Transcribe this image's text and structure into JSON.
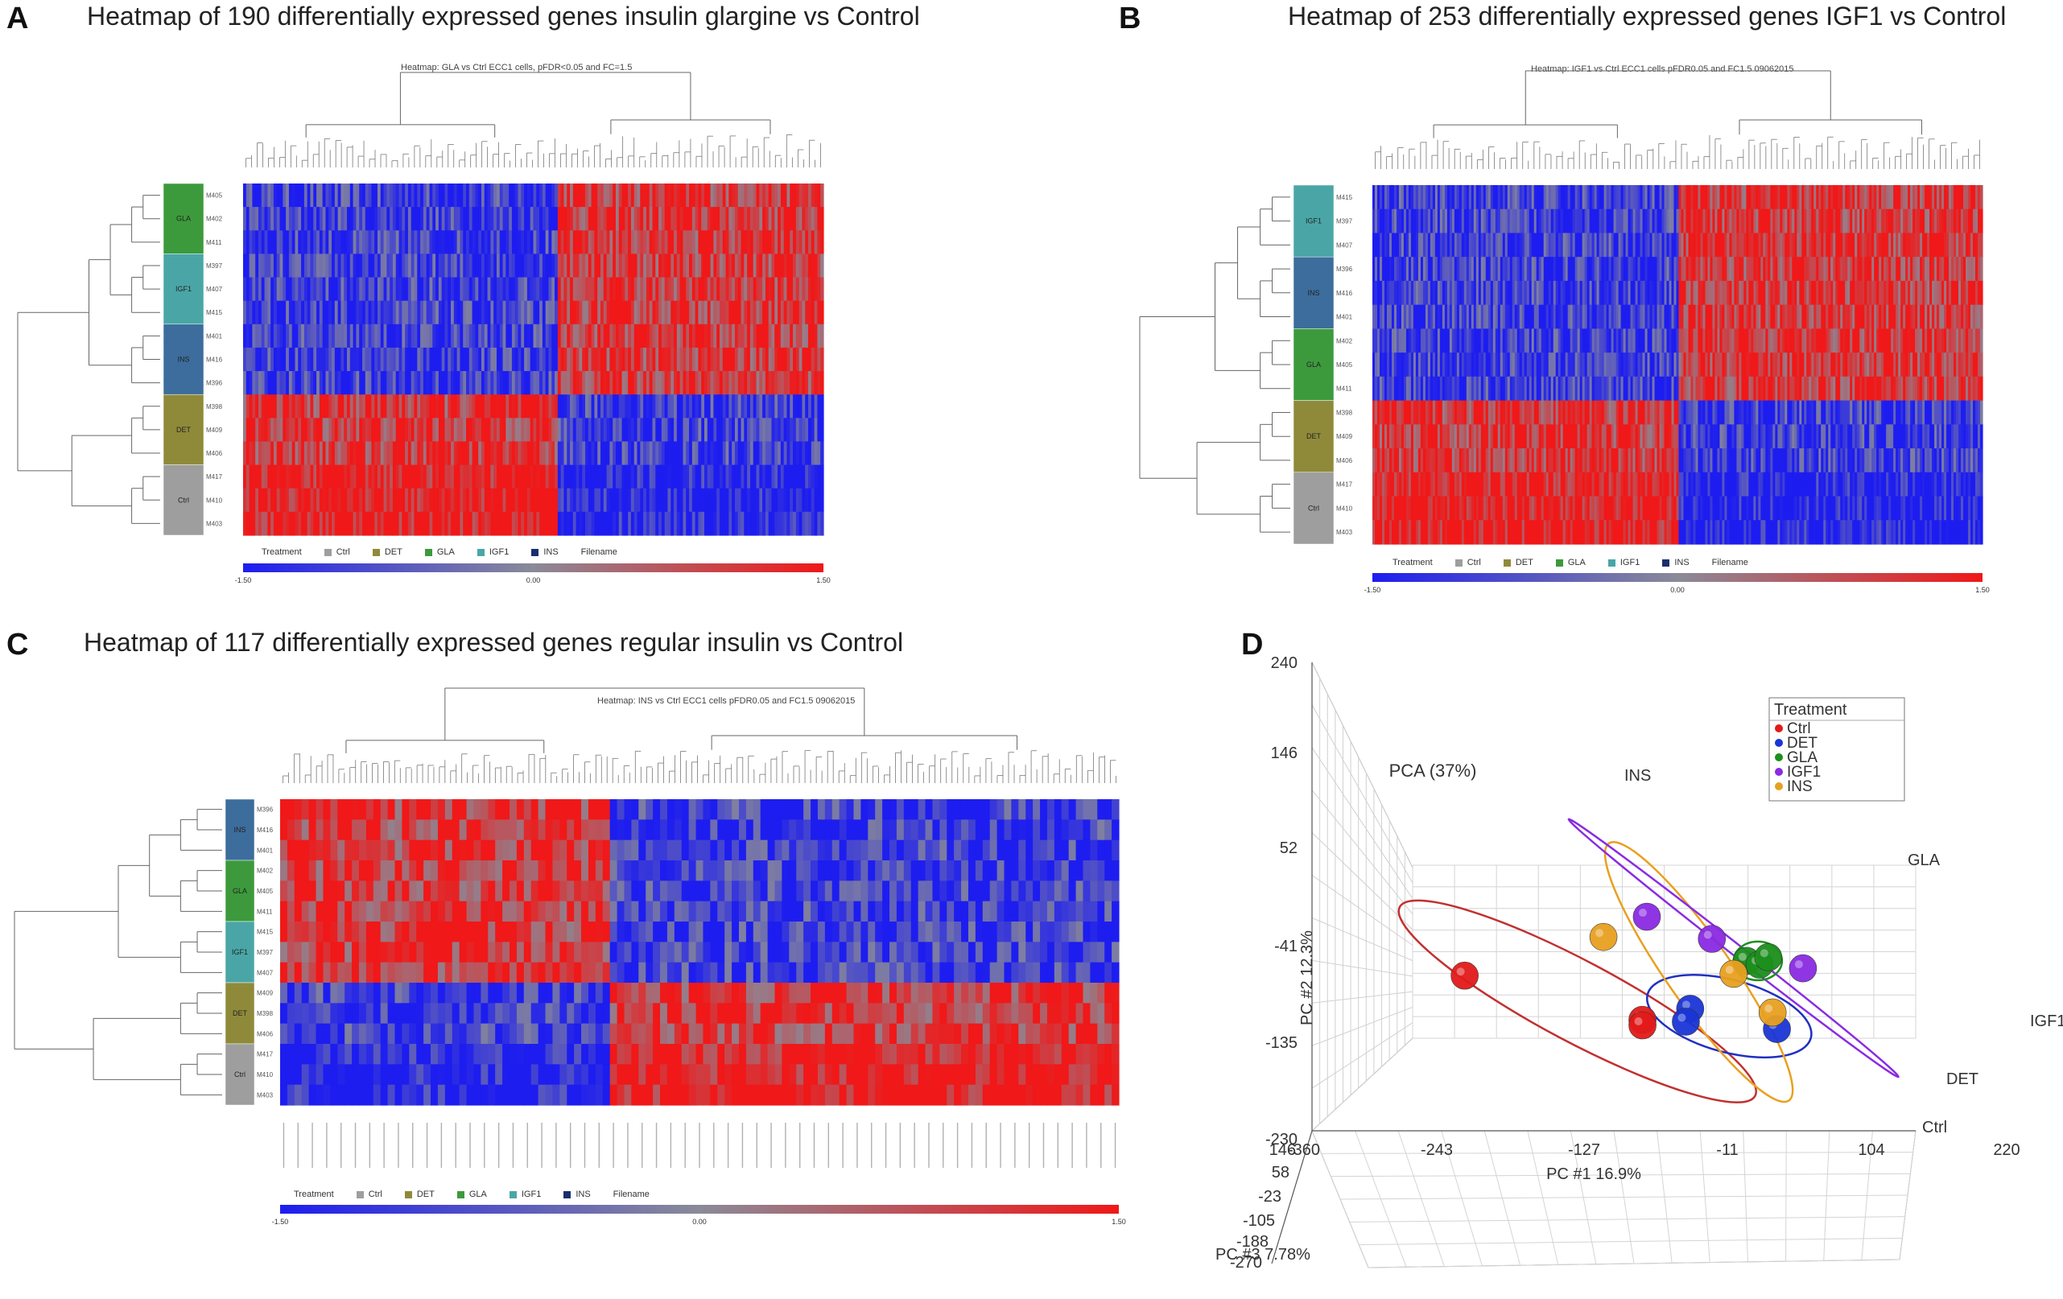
{
  "colors": {
    "ctrl": "#9e9e9e",
    "det": "#8f8a3a",
    "gla": "#3c9a3c",
    "igf1": "#4aa6a6",
    "ins": "#3c6d9c",
    "heat_low": "#1d1df0",
    "heat_mid": "#8a8a98",
    "heat_high": "#f01818",
    "pca_ctrl": "#e21a1a",
    "pca_det": "#1a35d6",
    "pca_gla": "#1c8f1c",
    "pca_igf1": "#8a2be2",
    "pca_ins": "#e8a020"
  },
  "panels": {
    "A": {
      "label": "A",
      "title": "Heatmap of 190 differentially expressed genes insulin glargine vs Control",
      "subtitle": "Heatmap: GLA vs Ctrl ECC1 cells, pFDR<0.05 and FC=1.5"
    },
    "B": {
      "label": "B",
      "title": "Heatmap of 253 differentially expressed genes IGF1 vs Control",
      "subtitle": "Heatmap: IGF1 vs Ctrl ECC1 cells pFDR0.05 and FC1.5 09062015"
    },
    "C": {
      "label": "C",
      "title": "Heatmap of 117 differentially expressed genes regular insulin vs Control",
      "subtitle": "Heatmap: INS vs Ctrl ECC1 cells pFDR0.05 and FC1.5 09062015"
    },
    "D": {
      "label": "D"
    }
  },
  "legend": {
    "treatment": "Treatment",
    "ctrl": "Ctrl",
    "det": "DET",
    "gla": "GLA",
    "igf1": "IGF1",
    "ins": "INS",
    "filename": "Filename"
  },
  "scale": {
    "min": "-1.50",
    "mid": "0.00",
    "max": "1.50"
  },
  "chart_data": [
    {
      "type": "heatmap",
      "panel": "A",
      "title": "Heatmap of 190 differentially expressed genes insulin glargine vs Control",
      "genes": 190,
      "row_groups": [
        {
          "group": "GLA",
          "rows": [
            "M405",
            "M402",
            "M411"
          ]
        },
        {
          "group": "IGF1",
          "rows": [
            "M397",
            "M407",
            "M415"
          ]
        },
        {
          "group": "INS",
          "rows": [
            "M401",
            "M416",
            "M396"
          ]
        },
        {
          "group": "DET",
          "rows": [
            "M398",
            "M409",
            "M406"
          ]
        },
        {
          "group": "Ctrl",
          "rows": [
            "M417",
            "M410",
            "M403"
          ]
        }
      ],
      "color_range": [
        -1.5,
        1.5
      ],
      "scale_labels": [
        "-1.50",
        "0.00",
        "1.50"
      ]
    },
    {
      "type": "heatmap",
      "panel": "B",
      "title": "Heatmap of 253 differentially expressed genes IGF1 vs Control",
      "genes": 253,
      "row_groups": [
        {
          "group": "IGF1",
          "rows": [
            "M415",
            "M397",
            "M407"
          ]
        },
        {
          "group": "INS",
          "rows": [
            "M396",
            "M416",
            "M401"
          ]
        },
        {
          "group": "GLA",
          "rows": [
            "M402",
            "M405",
            "M411"
          ]
        },
        {
          "group": "DET",
          "rows": [
            "M398",
            "M409",
            "M406"
          ]
        },
        {
          "group": "Ctrl",
          "rows": [
            "M417",
            "M410",
            "M403"
          ]
        }
      ],
      "color_range": [
        -1.5,
        1.5
      ],
      "scale_labels": [
        "-1.50",
        "0.00",
        "1.50"
      ]
    },
    {
      "type": "heatmap",
      "panel": "C",
      "title": "Heatmap of 117 differentially expressed genes regular insulin vs Control",
      "genes": 117,
      "row_groups": [
        {
          "group": "INS",
          "rows": [
            "M396",
            "M416",
            "M401"
          ]
        },
        {
          "group": "GLA",
          "rows": [
            "M402",
            "M405",
            "M411"
          ]
        },
        {
          "group": "IGF1",
          "rows": [
            "M415",
            "M397",
            "M407"
          ]
        },
        {
          "group": "DET",
          "rows": [
            "M409",
            "M398",
            "M406"
          ]
        },
        {
          "group": "Ctrl",
          "rows": [
            "M417",
            "M410",
            "M403"
          ]
        }
      ],
      "color_range": [
        -1.5,
        1.5
      ],
      "scale_labels": [
        "-1.50",
        "0.00",
        "1.50"
      ]
    },
    {
      "type": "scatter",
      "panel": "D",
      "title": "PCA (37%)",
      "xlabel": "PC #1 16.9%",
      "ylabel": "PC #2 12.3%",
      "zlabel": "PC #3 7.78%",
      "x_ticks": [
        "-360",
        "-243",
        "-127",
        "-11",
        "104",
        "220"
      ],
      "y_ticks": [
        "240",
        "146",
        "52",
        "-41",
        "-135",
        "-230"
      ],
      "z_ticks": [
        "146",
        "58",
        "-23",
        "-105",
        "-188",
        "-270"
      ],
      "legend_title": "Treatment",
      "series": [
        {
          "name": "Ctrl",
          "color": "#e21a1a",
          "points": [
            [
              -300,
              -60
            ],
            [
              -95,
              -180
            ],
            [
              -95,
              -195
            ]
          ]
        },
        {
          "name": "DET",
          "color": "#1a35d6",
          "points": [
            [
              -40,
              -150
            ],
            [
              -45,
              -185
            ],
            [
              60,
              -205
            ]
          ]
        },
        {
          "name": "GLA",
          "color": "#1c8f1c",
          "points": [
            [
              25,
              -20
            ],
            [
              40,
              -30
            ],
            [
              50,
              -10
            ]
          ]
        },
        {
          "name": "IGF1",
          "color": "#8a2be2",
          "points": [
            [
              -90,
              100
            ],
            [
              -15,
              40
            ],
            [
              90,
              -40
            ]
          ]
        },
        {
          "name": "INS",
          "color": "#e8a020",
          "points": [
            [
              -140,
              45
            ],
            [
              10,
              -55
            ],
            [
              55,
              -160
            ]
          ]
        }
      ],
      "annotations": [
        "INS",
        "GLA",
        "IGF1",
        "DET",
        "Ctrl"
      ]
    }
  ]
}
